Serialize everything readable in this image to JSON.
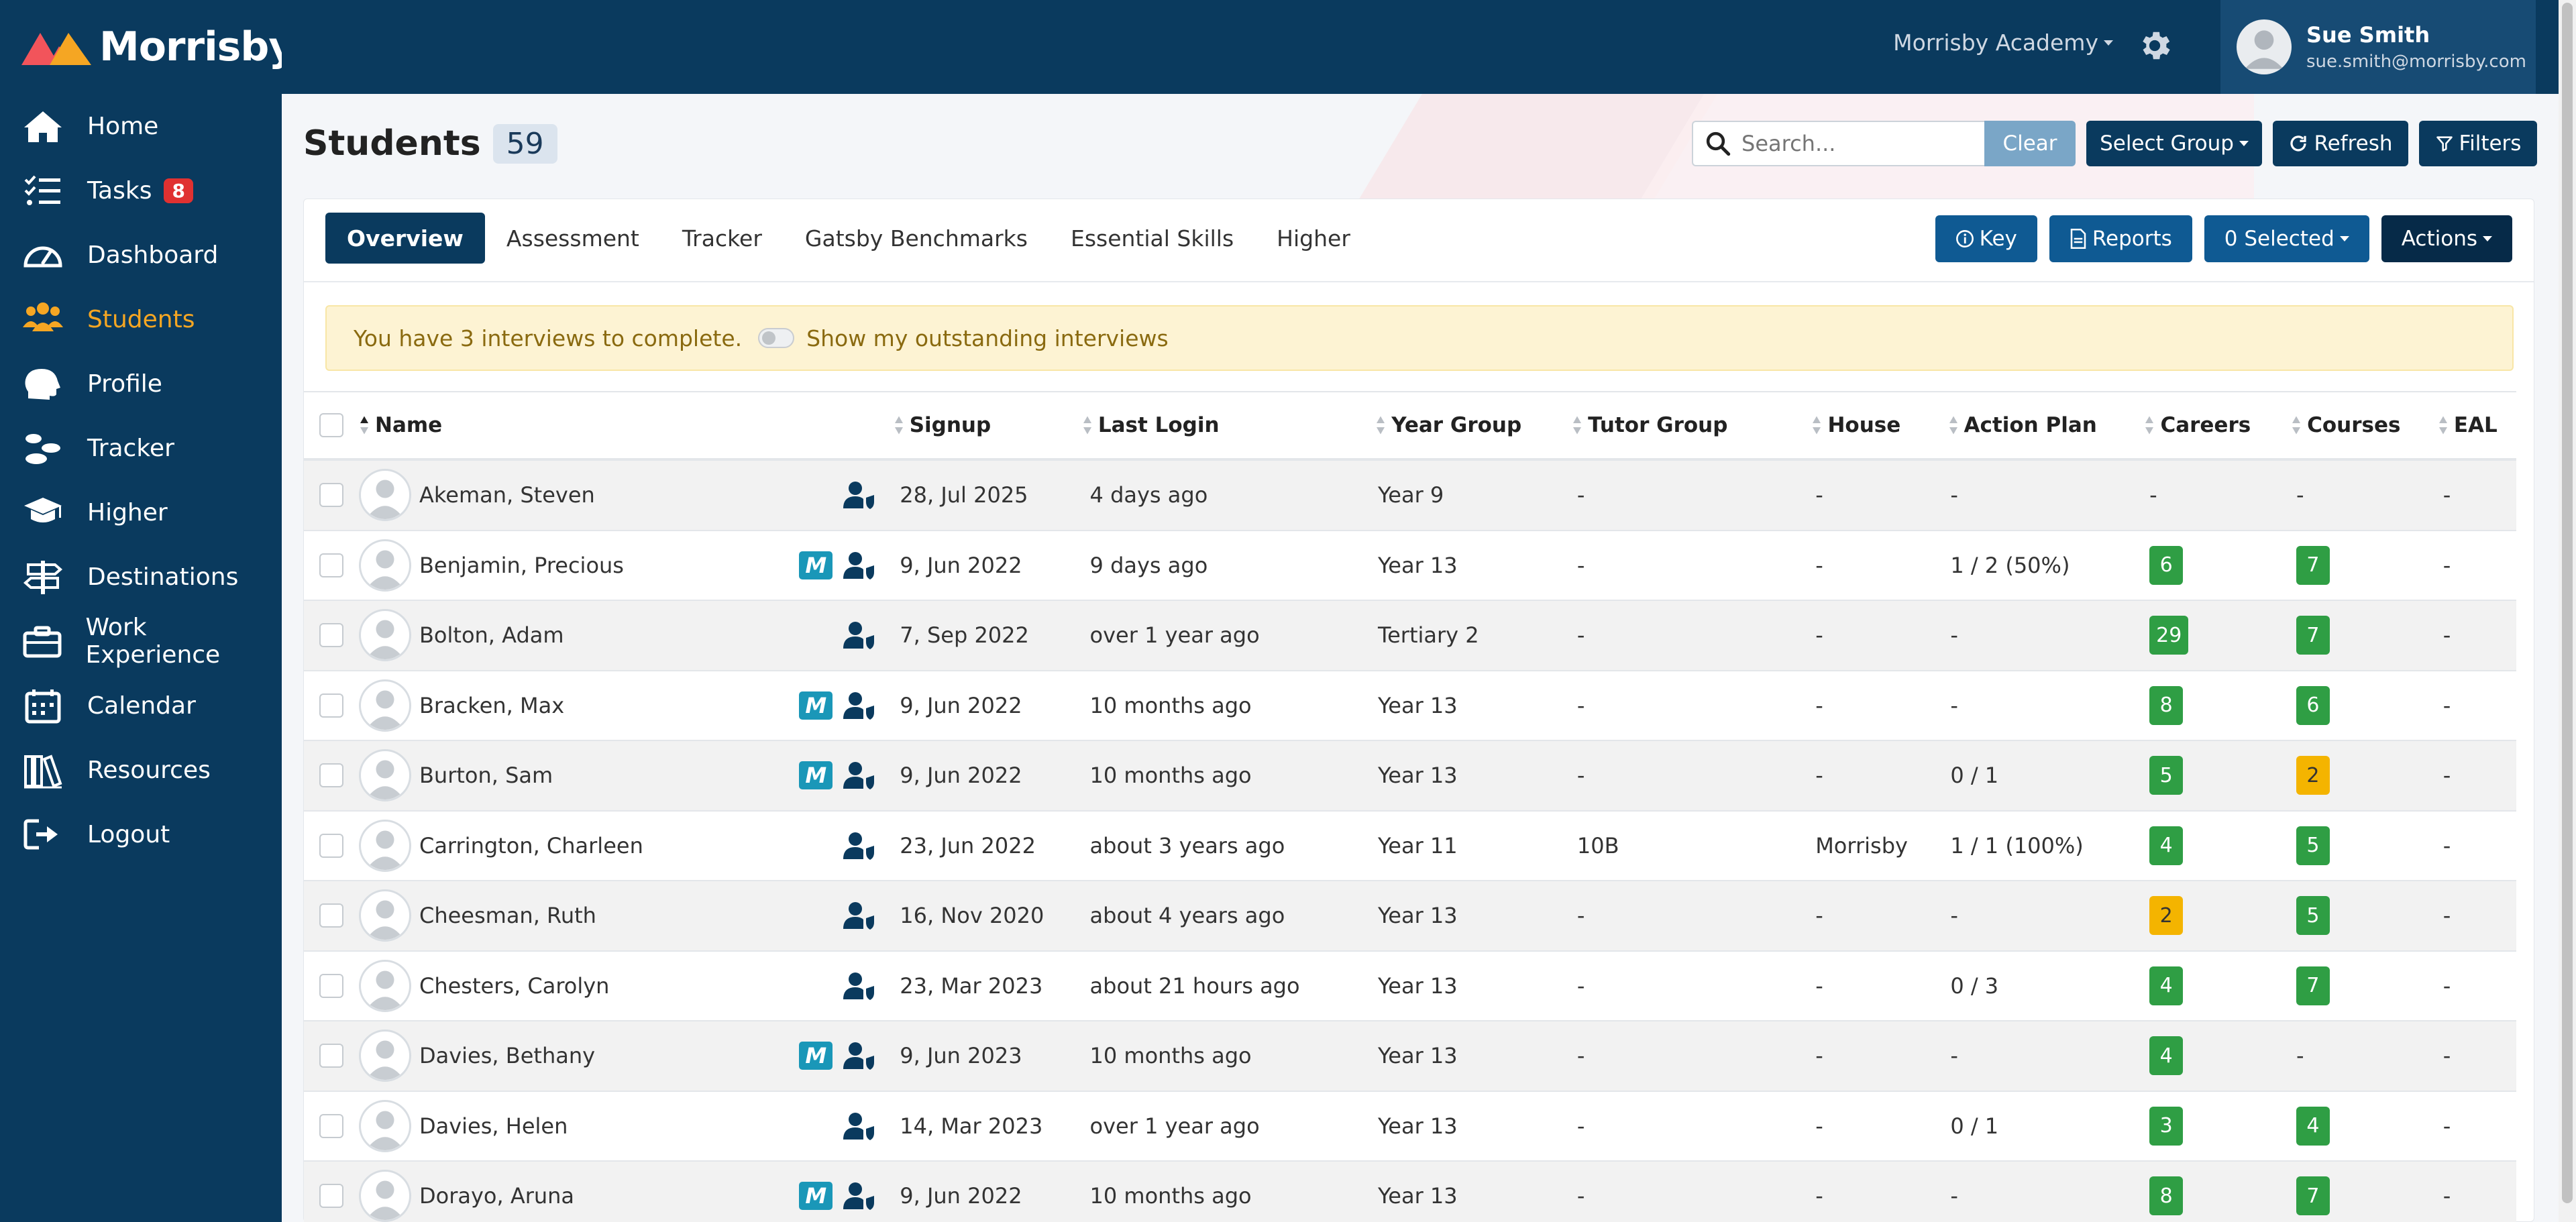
{
  "brand": {
    "name": "Morrisby",
    "accent": "#f5a623",
    "navy": "#0a3a5e"
  },
  "sidebar": {
    "items": [
      {
        "label": "Home",
        "icon": "home-icon"
      },
      {
        "label": "Tasks",
        "icon": "tasks-icon",
        "badge": "8"
      },
      {
        "label": "Dashboard",
        "icon": "dashboard-icon"
      },
      {
        "label": "Students",
        "icon": "students-icon",
        "active": true
      },
      {
        "label": "Profile",
        "icon": "profile-icon"
      },
      {
        "label": "Tracker",
        "icon": "tracker-icon"
      },
      {
        "label": "Higher",
        "icon": "graduation-icon"
      },
      {
        "label": "Destinations",
        "icon": "signpost-icon"
      },
      {
        "label": "Work Experience",
        "icon": "briefcase-icon"
      },
      {
        "label": "Calendar",
        "icon": "calendar-icon"
      },
      {
        "label": "Resources",
        "icon": "books-icon"
      },
      {
        "label": "Logout",
        "icon": "logout-icon"
      }
    ]
  },
  "topbar": {
    "academy": "Morrisby Academy",
    "user": {
      "name": "Sue Smith",
      "email": "sue.smith@morrisby.com"
    }
  },
  "page": {
    "title": "Students",
    "count": "59"
  },
  "search": {
    "placeholder": "Search...",
    "value": "",
    "clear": "Clear"
  },
  "header_buttons": {
    "select_group": "Select Group",
    "refresh": "Refresh",
    "filters": "Filters"
  },
  "tabs": [
    "Overview",
    "Assessment",
    "Tracker",
    "Gatsby Benchmarks",
    "Essential Skills",
    "Higher"
  ],
  "panel_buttons": {
    "key": "Key",
    "reports": "Reports",
    "selected": "0 Selected",
    "actions": "Actions"
  },
  "alert": {
    "text": "You have 3 interviews to complete.",
    "toggle_label": "Show my outstanding interviews"
  },
  "table": {
    "columns": [
      "Name",
      "Signup",
      "Last Login",
      "Year Group",
      "Tutor Group",
      "House",
      "Action Plan",
      "Careers",
      "Courses",
      "EAL"
    ],
    "rows": [
      {
        "name": "Akeman, Steven",
        "m": false,
        "signup": "28, Jul 2025",
        "login": "4 days ago",
        "year": "Year 9",
        "tutor": "-",
        "house": "-",
        "action": "-",
        "careers": {
          "v": "-",
          "c": "none"
        },
        "courses": {
          "v": "-",
          "c": "none"
        },
        "eal": "-"
      },
      {
        "name": "Benjamin, Precious",
        "m": true,
        "signup": "9, Jun 2022",
        "login": "9 days ago",
        "year": "Year 13",
        "tutor": "-",
        "house": "-",
        "action": "1 / 2 (50%)",
        "careers": {
          "v": "6",
          "c": "green"
        },
        "courses": {
          "v": "7",
          "c": "green"
        },
        "eal": "-"
      },
      {
        "name": "Bolton, Adam",
        "m": false,
        "signup": "7, Sep 2022",
        "login": "over 1 year ago",
        "year": "Tertiary 2",
        "tutor": "-",
        "house": "-",
        "action": "-",
        "careers": {
          "v": "29",
          "c": "green"
        },
        "courses": {
          "v": "7",
          "c": "green"
        },
        "eal": "-"
      },
      {
        "name": "Bracken, Max",
        "m": true,
        "signup": "9, Jun 2022",
        "login": "10 months ago",
        "year": "Year 13",
        "tutor": "-",
        "house": "-",
        "action": "-",
        "careers": {
          "v": "8",
          "c": "green"
        },
        "courses": {
          "v": "6",
          "c": "green"
        },
        "eal": "-"
      },
      {
        "name": "Burton, Sam",
        "m": true,
        "signup": "9, Jun 2022",
        "login": "10 months ago",
        "year": "Year 13",
        "tutor": "-",
        "house": "-",
        "action": "0 / 1",
        "careers": {
          "v": "5",
          "c": "green"
        },
        "courses": {
          "v": "2",
          "c": "amber"
        },
        "eal": "-"
      },
      {
        "name": "Carrington, Charleen",
        "m": false,
        "signup": "23, Jun 2022",
        "login": "about 3 years ago",
        "year": "Year 11",
        "tutor": "10B",
        "house": "Morrisby",
        "action": "1 / 1 (100%)",
        "careers": {
          "v": "4",
          "c": "green"
        },
        "courses": {
          "v": "5",
          "c": "green"
        },
        "eal": "-"
      },
      {
        "name": "Cheesman, Ruth",
        "m": false,
        "signup": "16, Nov 2020",
        "login": "about 4 years ago",
        "year": "Year 13",
        "tutor": "-",
        "house": "-",
        "action": "-",
        "careers": {
          "v": "2",
          "c": "amber"
        },
        "courses": {
          "v": "5",
          "c": "green"
        },
        "eal": "-"
      },
      {
        "name": "Chesters, Carolyn",
        "m": false,
        "signup": "23, Mar 2023",
        "login": "about 21 hours ago",
        "year": "Year 13",
        "tutor": "-",
        "house": "-",
        "action": "0 / 3",
        "careers": {
          "v": "4",
          "c": "green"
        },
        "courses": {
          "v": "7",
          "c": "green"
        },
        "eal": "-"
      },
      {
        "name": "Davies, Bethany",
        "m": true,
        "signup": "9, Jun 2023",
        "login": "10 months ago",
        "year": "Year 13",
        "tutor": "-",
        "house": "-",
        "action": "-",
        "careers": {
          "v": "4",
          "c": "green"
        },
        "courses": {
          "v": "-",
          "c": "none"
        },
        "eal": "-"
      },
      {
        "name": "Davies, Helen",
        "m": false,
        "signup": "14, Mar 2023",
        "login": "over 1 year ago",
        "year": "Year 13",
        "tutor": "-",
        "house": "-",
        "action": "0 / 1",
        "careers": {
          "v": "3",
          "c": "green"
        },
        "courses": {
          "v": "4",
          "c": "green"
        },
        "eal": "-"
      },
      {
        "name": "Dorayo, Aruna",
        "m": true,
        "signup": "9, Jun 2022",
        "login": "10 months ago",
        "year": "Year 13",
        "tutor": "-",
        "house": "-",
        "action": "-",
        "careers": {
          "v": "8",
          "c": "green"
        },
        "courses": {
          "v": "7",
          "c": "green"
        },
        "eal": "-"
      }
    ]
  }
}
